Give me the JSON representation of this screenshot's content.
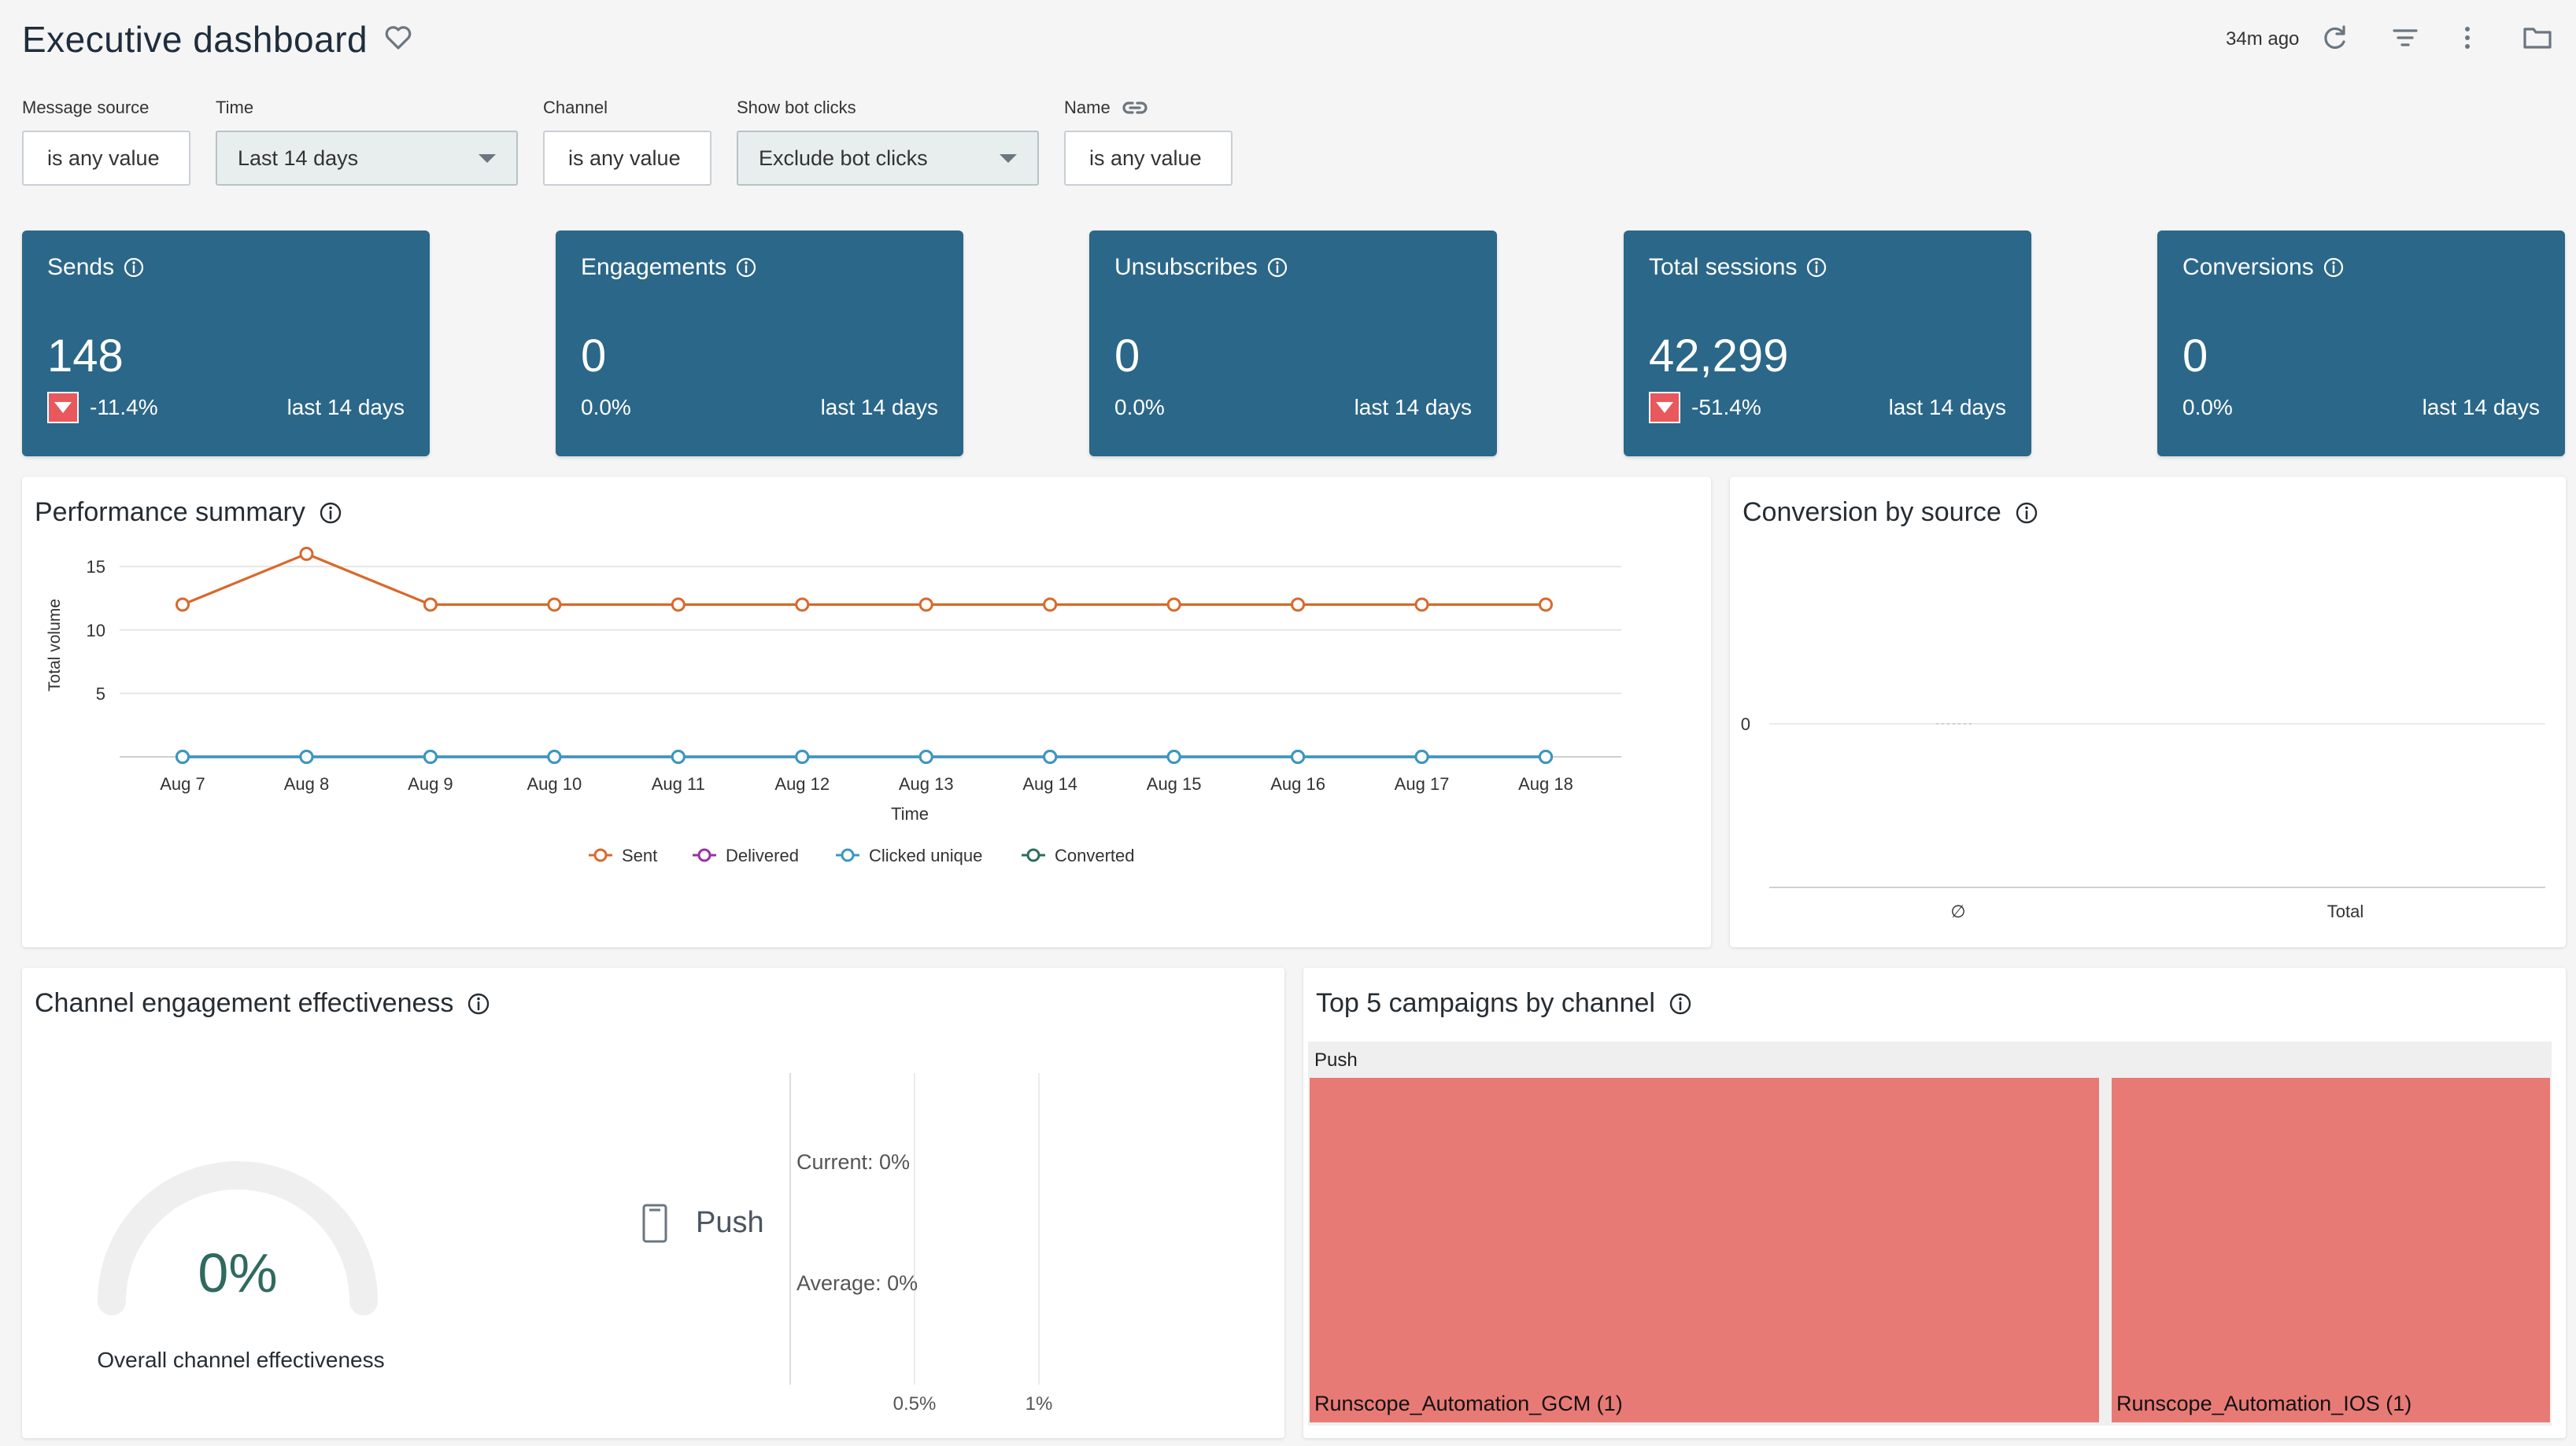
{
  "header": {
    "title": "Executive dashboard",
    "updated": "34m ago",
    "icons": [
      "heart-icon",
      "refresh-icon",
      "filter-icon",
      "more-vertical-icon",
      "folder-icon"
    ]
  },
  "filters": [
    {
      "label": "Message source",
      "value": "is any value",
      "type": "text"
    },
    {
      "label": "Time",
      "value": "Last 14 days",
      "type": "select"
    },
    {
      "label": "Channel",
      "value": "is any value",
      "type": "text"
    },
    {
      "label": "Show bot clicks",
      "value": "Exclude bot clicks",
      "type": "select"
    },
    {
      "label": "Name",
      "value": "is any value",
      "type": "text",
      "icon": "link-icon"
    }
  ],
  "kpis": [
    {
      "title": "Sends",
      "value": "148",
      "change": "-11.4%",
      "down": true,
      "period": "last 14 days"
    },
    {
      "title": "Engagements",
      "value": "0",
      "change": "0.0%",
      "down": false,
      "period": "last 14 days"
    },
    {
      "title": "Unsubscribes",
      "value": "0",
      "change": "0.0%",
      "down": false,
      "period": "last 14 days"
    },
    {
      "title": "Total sessions",
      "value": "42,299",
      "change": "-51.4%",
      "down": true,
      "period": "last 14 days"
    },
    {
      "title": "Conversions",
      "value": "0",
      "change": "0.0%",
      "down": false,
      "period": "last 14 days"
    }
  ],
  "performance": {
    "title": "Performance summary",
    "chart_data": {
      "type": "line",
      "x": [
        "Aug 7",
        "Aug 8",
        "Aug 9",
        "Aug 10",
        "Aug 11",
        "Aug 12",
        "Aug 13",
        "Aug 14",
        "Aug 15",
        "Aug 16",
        "Aug 17",
        "Aug 18"
      ],
      "xlabel": "Time",
      "ylabel": "Total volume",
      "yticks": [
        5,
        10,
        15
      ],
      "ylim": [
        0,
        16
      ],
      "grid": true,
      "legend": "bottom",
      "series": [
        {
          "name": "Sent",
          "color": "#d9682b",
          "values": [
            12,
            16,
            12,
            12,
            12,
            12,
            12,
            12,
            12,
            12,
            12,
            12
          ]
        },
        {
          "name": "Delivered",
          "color": "#9b2fa8",
          "values": [
            0,
            0,
            0,
            0,
            0,
            0,
            0,
            0,
            0,
            0,
            0,
            0
          ]
        },
        {
          "name": "Clicked unique",
          "color": "#3a97c4",
          "values": [
            0,
            0,
            0,
            0,
            0,
            0,
            0,
            0,
            0,
            0,
            0,
            0
          ]
        },
        {
          "name": "Converted",
          "color": "#2b6e5e",
          "values": [
            0,
            0,
            0,
            0,
            0,
            0,
            0,
            0,
            0,
            0,
            0,
            0
          ]
        }
      ]
    }
  },
  "conversion": {
    "title": "Conversion by source",
    "chart_data": {
      "type": "bar",
      "categories": [
        "∅",
        "Total"
      ],
      "values": [
        0,
        0
      ],
      "yticks": [
        0
      ]
    }
  },
  "effectiveness": {
    "title": "Channel engagement effectiveness",
    "gauge_value": "0%",
    "gauge_fraction": 0,
    "gauge_label": "Overall channel effectiveness",
    "channel": "Push",
    "current": "Current: 0%",
    "average": "Average: 0%",
    "ticks": [
      "0.5%",
      "1%"
    ]
  },
  "campaigns": {
    "title": "Top 5 campaigns by channel",
    "group": "Push",
    "items": [
      {
        "label": "Runscope_Automation_GCM (1)",
        "count": 1,
        "color": "#e87a76"
      },
      {
        "label": "Runscope_Automation_IOS (1)",
        "count": 1,
        "color": "#e87a76"
      }
    ]
  }
}
